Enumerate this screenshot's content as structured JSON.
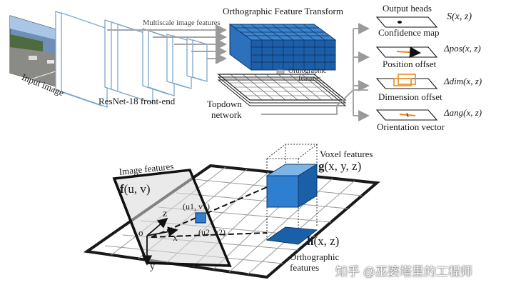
{
  "top_pipeline": {
    "input_label": "Input image",
    "multiscale_label": "Multiscale image features",
    "frontend_label": "ResNet-18 front-end",
    "oft_label": "Orthographic Feature Transform",
    "ortho_features_label_1": "Orthographic",
    "ortho_features_label_2": "features",
    "topdown_label_1": "Topdown",
    "topdown_label_2": "network"
  },
  "output_heads": {
    "title": "Output heads",
    "heads": [
      {
        "label": "Confidence map",
        "symbol": "S(x, z)"
      },
      {
        "label": "Position offset",
        "symbol": "Δpos(x, z)"
      },
      {
        "label": "Dimension offset",
        "symbol": "Δdim(x, z)"
      },
      {
        "label": "Orientation vector",
        "symbol": "Δang(x, z)"
      }
    ]
  },
  "bottom_diagram": {
    "image_features_label": "Image features",
    "f_expr_main": "f",
    "f_expr_args": "(u, v)",
    "voxel_label": "Voxel features",
    "g_expr_main": "g",
    "g_expr_args": "(x, y, z)",
    "h_expr_main": "h",
    "h_expr_args": "(x, z)",
    "ortho_label_1": "Orthographic",
    "ortho_label_2": "features",
    "origin_label": "o",
    "axis_x": "x",
    "axis_y": "y",
    "axis_z": "z",
    "uv1": "(u1, v1)",
    "uv2": "(u2, v2)"
  },
  "watermark": "知乎 @巫婆塔里的工程师",
  "colors": {
    "blue_dark": "#1a5fa8",
    "blue_mid": "#2f7fd0",
    "blue_light": "#7fb5e6",
    "orange": "#e88a1a",
    "grid_dark": "#2a2a2a"
  }
}
